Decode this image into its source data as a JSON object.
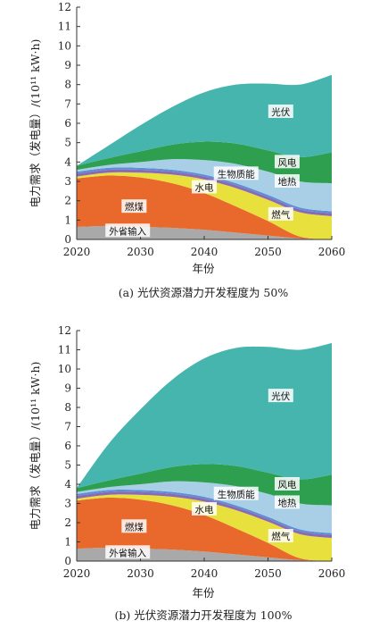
{
  "charts": [
    {
      "caption": "(a) 光伏资源潜力开发程度为 50%",
      "series_labels": {
        "solar": "光伏",
        "wind": "风电",
        "geothermal": "地热",
        "biomass": "生物质能",
        "hydro": "水电",
        "gas": "燃气",
        "coal": "燃煤",
        "import": "外省输入"
      }
    },
    {
      "caption": "(b) 光伏资源潜力开发程度为 100%",
      "series_labels": {
        "solar": "光伏",
        "wind": "风电",
        "geothermal": "地热",
        "biomass": "生物质能",
        "hydro": "水电",
        "gas": "燃气",
        "coal": "燃煤",
        "import": "外省输入"
      }
    }
  ],
  "chart_data": [
    {
      "type": "area",
      "stacked": true,
      "xlabel": "年份",
      "ylabel": "电力需求（发电量）/(10¹¹ kW·h)",
      "xlim": [
        2020,
        2060
      ],
      "ylim": [
        0,
        12
      ],
      "x_ticks": [
        2020,
        2030,
        2040,
        2050,
        2060
      ],
      "y_ticks": [
        0,
        1,
        2,
        3,
        4,
        5,
        6,
        7,
        8,
        9,
        10,
        11,
        12
      ],
      "x": [
        2020,
        2025,
        2030,
        2035,
        2040,
        2045,
        2050,
        2055,
        2060
      ],
      "series": [
        {
          "name": "外省输入",
          "color": "#a9a9a9",
          "values": [
            0.65,
            0.7,
            0.65,
            0.6,
            0.5,
            0.35,
            0.2,
            0.05,
            0.0
          ]
        },
        {
          "name": "燃煤",
          "color": "#e8692b",
          "values": [
            2.5,
            2.6,
            2.55,
            2.3,
            1.9,
            1.35,
            0.75,
            0.1,
            0.0
          ]
        },
        {
          "name": "燃气",
          "color": "#e8e03c",
          "values": [
            0.1,
            0.15,
            0.25,
            0.45,
            0.7,
            0.95,
            1.1,
            1.25,
            1.2
          ]
        },
        {
          "name": "水电",
          "color": "#8b6ab5",
          "values": [
            0.15,
            0.15,
            0.15,
            0.15,
            0.15,
            0.15,
            0.15,
            0.15,
            0.15
          ]
        },
        {
          "name": "生物质能",
          "color": "#5a8fd6",
          "values": [
            0.1,
            0.1,
            0.1,
            0.1,
            0.1,
            0.1,
            0.1,
            0.1,
            0.1
          ]
        },
        {
          "name": "地热",
          "color": "#a8cfe6",
          "values": [
            0.1,
            0.15,
            0.3,
            0.55,
            0.75,
            1.0,
            1.2,
            1.35,
            1.45
          ]
        },
        {
          "name": "风电",
          "color": "#2e9e4f",
          "values": [
            0.2,
            0.35,
            0.55,
            0.75,
            0.95,
            1.05,
            1.1,
            1.25,
            1.6
          ]
        },
        {
          "name": "光伏",
          "color": "#45b5ad",
          "values": [
            0.0,
            0.65,
            1.35,
            1.95,
            2.55,
            3.05,
            3.45,
            3.75,
            4.0
          ]
        }
      ]
    },
    {
      "type": "area",
      "stacked": true,
      "xlabel": "年份",
      "ylabel": "电力需求（发电量）/(10¹¹ kW·h)",
      "xlim": [
        2020,
        2060
      ],
      "ylim": [
        0,
        12
      ],
      "x_ticks": [
        2020,
        2030,
        2040,
        2050,
        2060
      ],
      "y_ticks": [
        0,
        1,
        2,
        3,
        4,
        5,
        6,
        7,
        8,
        9,
        10,
        11,
        12
      ],
      "x": [
        2020,
        2025,
        2030,
        2035,
        2040,
        2045,
        2050,
        2055,
        2060
      ],
      "series": [
        {
          "name": "外省输入",
          "color": "#a9a9a9",
          "values": [
            0.65,
            0.7,
            0.65,
            0.6,
            0.5,
            0.35,
            0.2,
            0.05,
            0.0
          ]
        },
        {
          "name": "燃煤",
          "color": "#e8692b",
          "values": [
            2.5,
            2.6,
            2.55,
            2.3,
            1.9,
            1.35,
            0.75,
            0.1,
            0.0
          ]
        },
        {
          "name": "燃气",
          "color": "#e8e03c",
          "values": [
            0.1,
            0.15,
            0.25,
            0.45,
            0.7,
            0.95,
            1.1,
            1.25,
            1.2
          ]
        },
        {
          "name": "水电",
          "color": "#8b6ab5",
          "values": [
            0.15,
            0.15,
            0.15,
            0.15,
            0.15,
            0.15,
            0.15,
            0.15,
            0.15
          ]
        },
        {
          "name": "生物质能",
          "color": "#5a8fd6",
          "values": [
            0.1,
            0.1,
            0.1,
            0.1,
            0.1,
            0.1,
            0.1,
            0.1,
            0.1
          ]
        },
        {
          "name": "地热",
          "color": "#a8cfe6",
          "values": [
            0.1,
            0.15,
            0.3,
            0.55,
            0.75,
            1.0,
            1.2,
            1.35,
            1.45
          ]
        },
        {
          "name": "风电",
          "color": "#2e9e4f",
          "values": [
            0.2,
            0.35,
            0.55,
            0.75,
            0.95,
            1.05,
            1.1,
            1.25,
            1.6
          ]
        },
        {
          "name": "光伏",
          "color": "#45b5ad",
          "values": [
            0.0,
            1.9,
            3.35,
            4.55,
            5.5,
            6.15,
            6.55,
            6.75,
            6.85
          ]
        }
      ]
    }
  ]
}
